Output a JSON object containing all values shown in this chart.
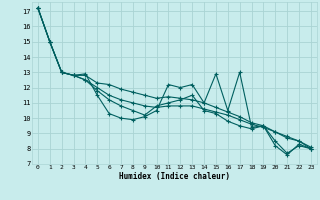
{
  "xlabel": "Humidex (Indice chaleur)",
  "xlim": [
    -0.5,
    23.5
  ],
  "ylim": [
    7,
    17.6
  ],
  "yticks": [
    7,
    8,
    9,
    10,
    11,
    12,
    13,
    14,
    15,
    16,
    17
  ],
  "xticks": [
    0,
    1,
    2,
    3,
    4,
    5,
    6,
    7,
    8,
    9,
    10,
    11,
    12,
    13,
    14,
    15,
    16,
    17,
    18,
    19,
    20,
    21,
    22,
    23
  ],
  "bg_color": "#c8ecec",
  "grid_color": "#aad4d4",
  "line_color": "#005f5f",
  "line1": [
    17.2,
    15.0,
    13.0,
    12.8,
    12.9,
    11.5,
    10.3,
    10.0,
    9.9,
    10.1,
    10.5,
    12.2,
    12.0,
    12.2,
    11.0,
    12.9,
    10.5,
    13.0,
    9.4,
    9.5,
    8.2,
    7.6,
    8.3,
    8.0
  ],
  "line2": [
    17.2,
    15.0,
    13.0,
    12.8,
    12.8,
    12.3,
    12.2,
    11.9,
    11.7,
    11.5,
    11.3,
    11.4,
    11.3,
    11.2,
    11.0,
    10.7,
    10.4,
    10.1,
    9.7,
    9.5,
    9.1,
    8.7,
    8.5,
    8.0
  ],
  "line3": [
    17.2,
    15.0,
    13.0,
    12.8,
    12.5,
    12.0,
    11.5,
    11.2,
    11.0,
    10.8,
    10.7,
    10.8,
    10.8,
    10.8,
    10.6,
    10.4,
    10.2,
    9.9,
    9.6,
    9.4,
    9.1,
    8.8,
    8.5,
    8.1
  ],
  "line4": [
    17.2,
    15.0,
    13.0,
    12.8,
    12.5,
    11.8,
    11.2,
    10.8,
    10.5,
    10.2,
    10.8,
    11.0,
    11.2,
    11.5,
    10.5,
    10.3,
    9.8,
    9.5,
    9.3,
    9.5,
    8.5,
    7.7,
    8.2,
    8.0
  ]
}
